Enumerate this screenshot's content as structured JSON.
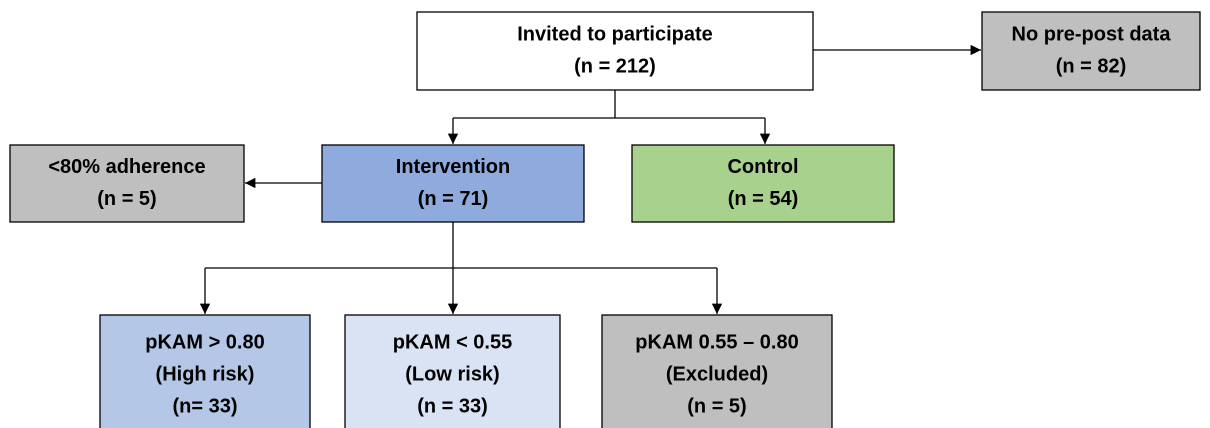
{
  "nodes": [
    {
      "lines": [
        "Invited to participate",
        "(n = 212)"
      ]
    },
    {
      "lines": [
        "No pre-post data",
        "(n = 82)"
      ]
    },
    {
      "lines": [
        "<80% adherence",
        "(n = 5)"
      ]
    },
    {
      "lines": [
        "Intervention",
        "(n = 71)"
      ]
    },
    {
      "lines": [
        "Control",
        "(n = 54)"
      ]
    },
    {
      "lines": [
        "pKAM > 0.80",
        "(High risk)",
        "(n= 33)"
      ]
    },
    {
      "lines": [
        "pKAM < 0.55",
        "(Low risk)",
        "(n = 33)"
      ]
    },
    {
      "lines": [
        "pKAM 0.55 – 0.80",
        "(Excluded)",
        "(n = 5)"
      ]
    }
  ]
}
